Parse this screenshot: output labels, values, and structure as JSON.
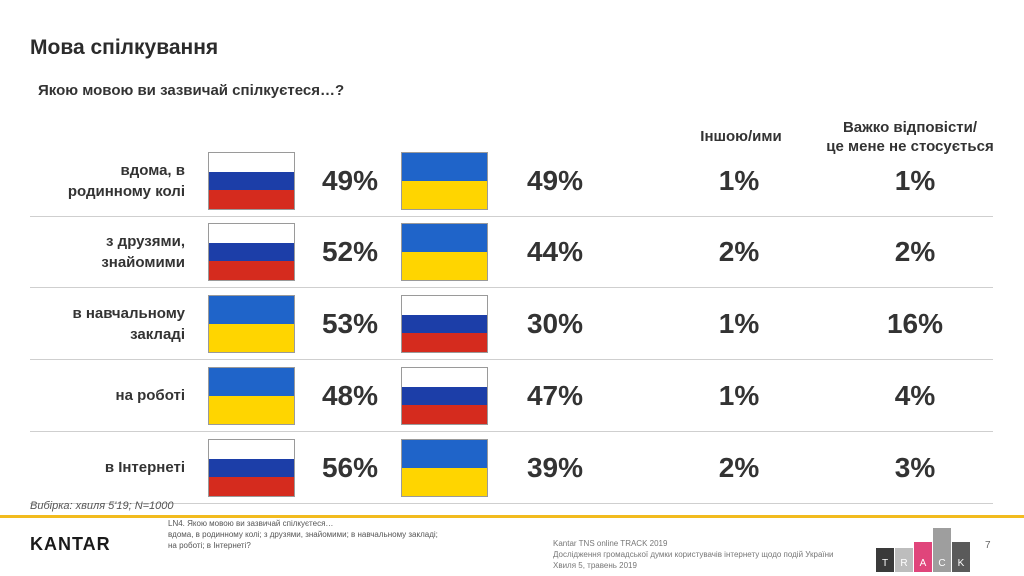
{
  "title": "Мова спілкування",
  "question": "Якою мовою ви зазвичай спілкуєтеся…?",
  "column_headers": {
    "other": "Іншою/ими",
    "hard_line1": "Важко відповісти/",
    "hard_line2": "це мене не стосується"
  },
  "chart_data": {
    "type": "table",
    "title": "Мова спілкування",
    "columns": [
      "lang1",
      "lang1_pct",
      "lang2",
      "lang2_pct",
      "Іншою/ими",
      "Важко відповісти/ це мене не стосується"
    ],
    "rows": [
      {
        "label_lines": [
          "вдома, в",
          "родинному колі"
        ],
        "lang1": "russian-flag",
        "lang1_pct": "49%",
        "lang2": "ukrainian-flag",
        "lang2_pct": "49%",
        "other": "1%",
        "hard": "1%"
      },
      {
        "label_lines": [
          "з друзями,",
          "знайомими"
        ],
        "lang1": "russian-flag",
        "lang1_pct": "52%",
        "lang2": "ukrainian-flag",
        "lang2_pct": "44%",
        "other": "2%",
        "hard": "2%"
      },
      {
        "label_lines": [
          "в навчальному",
          "закладі"
        ],
        "lang1": "ukrainian-flag",
        "lang1_pct": "53%",
        "lang2": "russian-flag",
        "lang2_pct": "30%",
        "other": "1%",
        "hard": "16%"
      },
      {
        "label_lines": [
          "на роботі"
        ],
        "lang1": "ukrainian-flag",
        "lang1_pct": "48%",
        "lang2": "russian-flag",
        "lang2_pct": "47%",
        "other": "1%",
        "hard": "4%"
      },
      {
        "label_lines": [
          "в Інтернеті"
        ],
        "lang1": "russian-flag",
        "lang1_pct": "56%",
        "lang2": "ukrainian-flag",
        "lang2_pct": "39%",
        "other": "2%",
        "hard": "3%"
      }
    ]
  },
  "flag_colors": {
    "russian": [
      "#ffffff",
      "#1c3ea8",
      "#d52b1e"
    ],
    "ukrainian": [
      "#1f64c9",
      "#ffd500"
    ]
  },
  "footnote": "Вибірка: хвиля 5'19;  N=1000",
  "footer": {
    "logo": "KANTAR",
    "question_code_lines": [
      "LN4. Якою мовою ви зазвичай спілкуєтеся…",
      "вдома, в родинному колі; з друзями, знайомими; в навчальному закладі;",
      "на роботі; в Інтернеті?"
    ],
    "source_lines": [
      "Kantar TNS online TRACK 2019",
      "Дослідження громадської думки користувачів інтернету щодо подій України",
      "Хвиля 5, травень 2019"
    ],
    "track_letters": [
      "T",
      "R",
      "A",
      "C",
      "K"
    ],
    "track_colors": [
      "#3a3a3a",
      "#bdbdbd",
      "#e0457b",
      "#9e9e9e",
      "#5a5a5a"
    ],
    "page_number": "7",
    "accent_color": "#f2bb1e"
  }
}
